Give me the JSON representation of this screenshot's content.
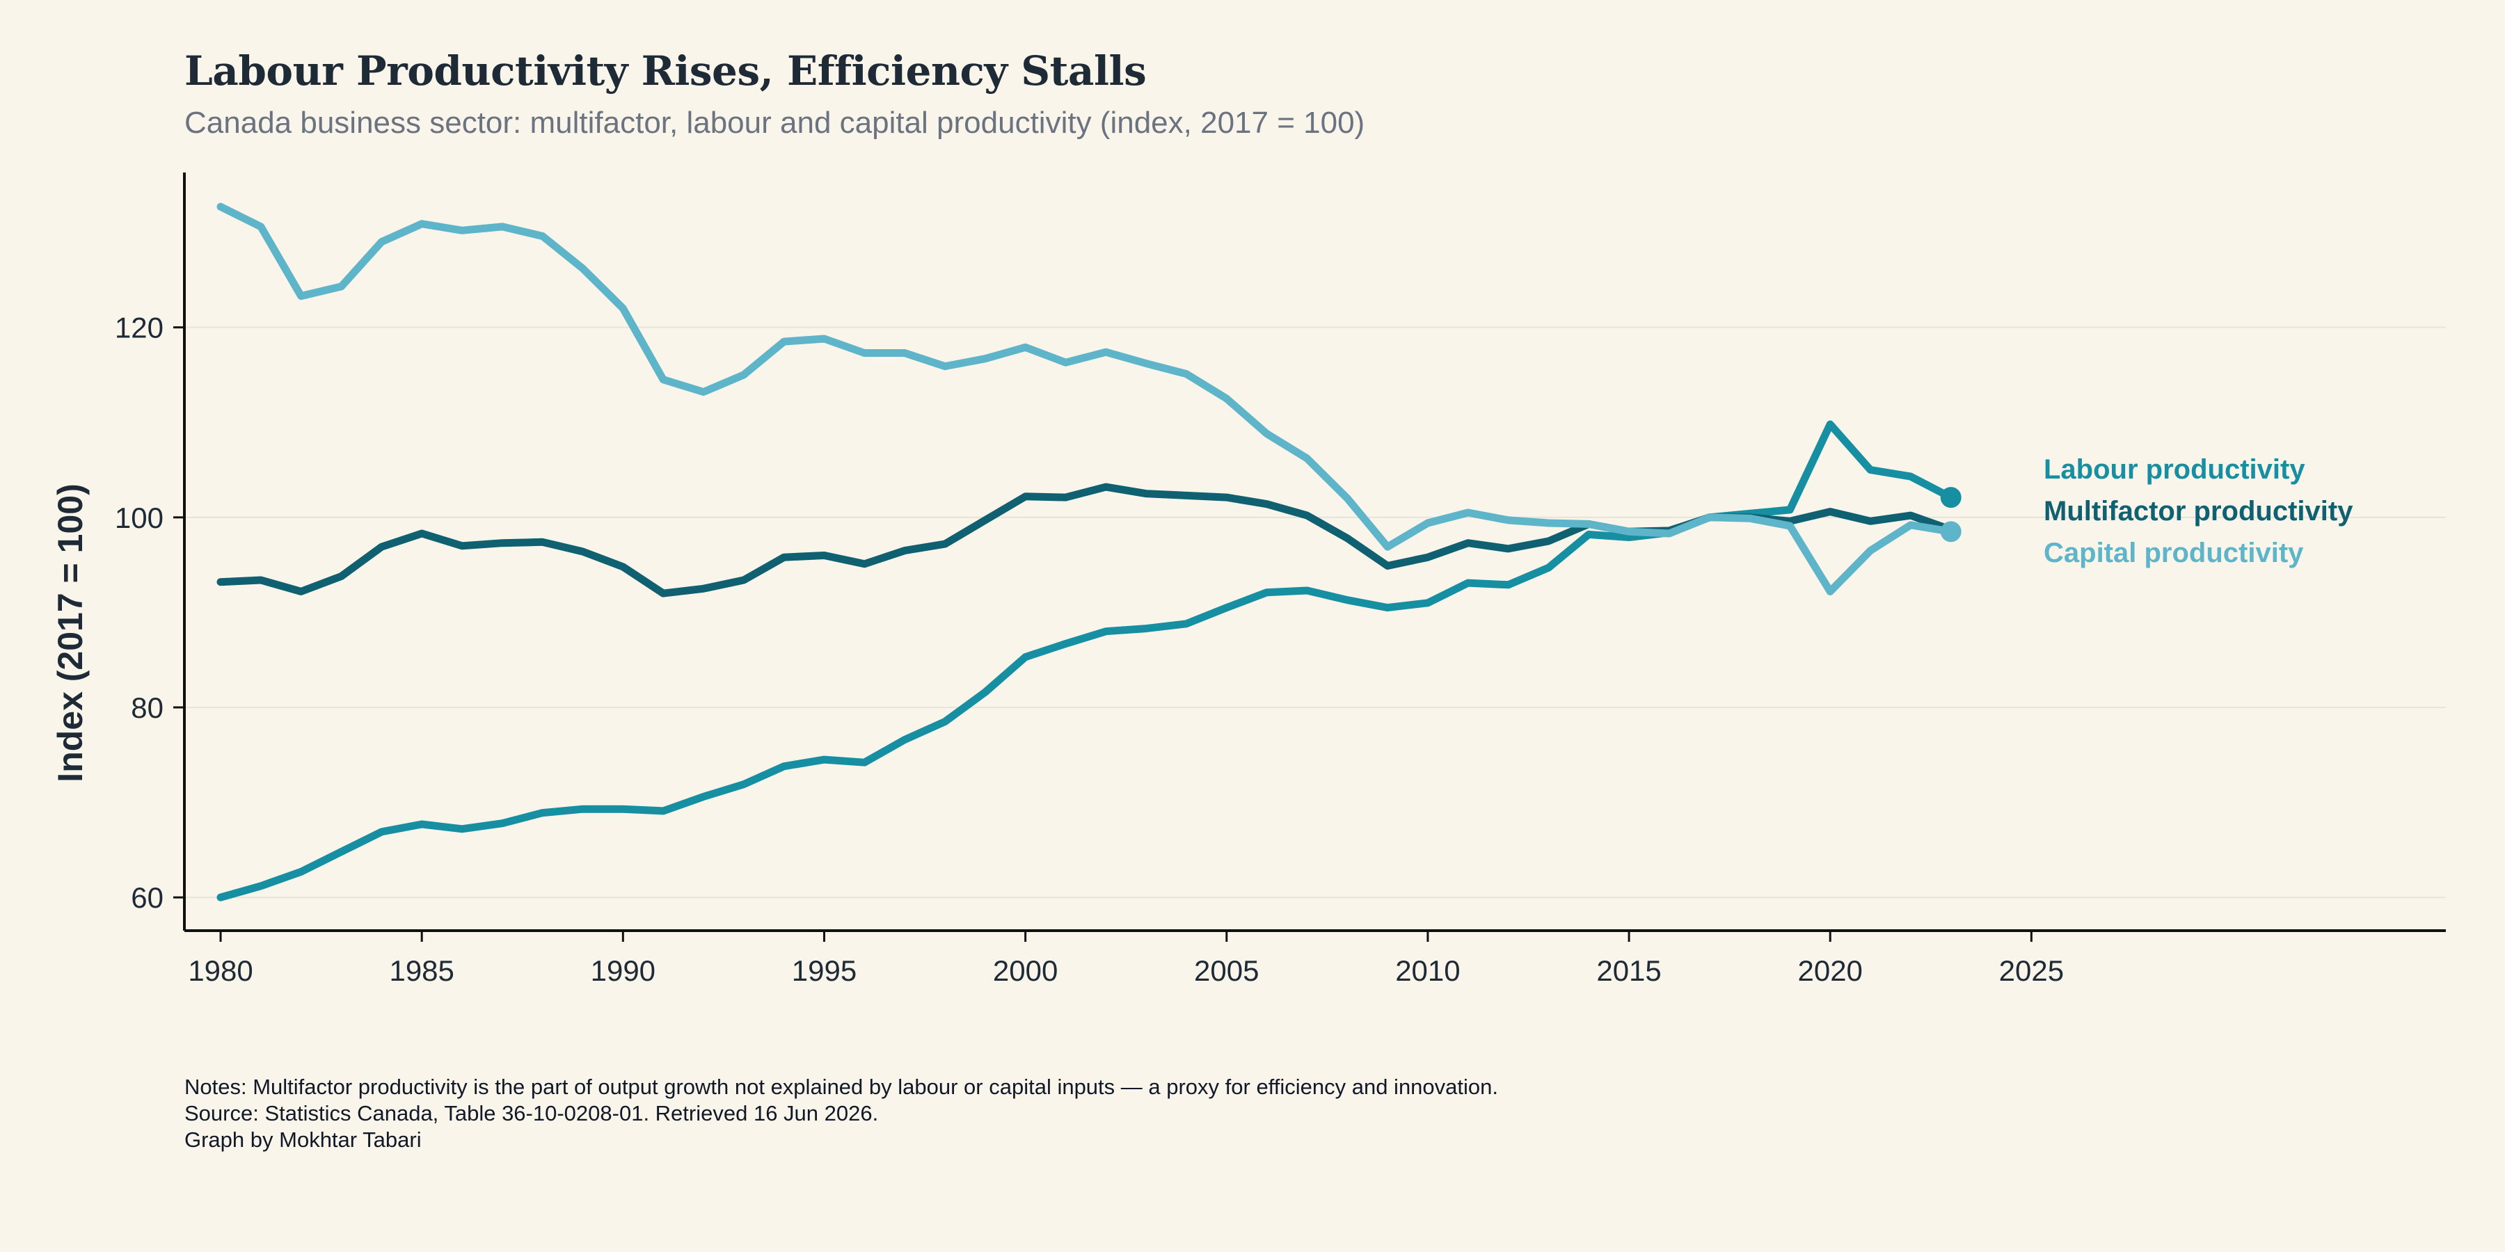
{
  "header": {
    "title": "Labour Productivity Rises, Efficiency Stalls",
    "subtitle": "Canada business sector: multifactor, labour and capital productivity (index, 2017 = 100)"
  },
  "footer": {
    "notes": "Notes: Multifactor productivity is the part of output growth not explained by labour or capital inputs — a proxy for efficiency and innovation.",
    "source": "Source: Statistics Canada, Table 36-10-0208-01. Retrieved 16 Jun 2026.",
    "credit": "Graph by Mokhtar Tabari"
  },
  "colors": {
    "labour": "#168fa3",
    "multifactor": "#0f6070",
    "capital": "#5eb4c8",
    "background": "#f9f5eb",
    "axis": "#111111",
    "grid": "#e8e4da"
  },
  "chart_data": {
    "type": "line",
    "title": "Labour Productivity Rises, Efficiency Stalls",
    "subtitle": "Canada business sector: multifactor, labour and capital productivity (index, 2017 = 100)",
    "xlabel": "",
    "ylabel": "Index (2017 = 100)",
    "xlim": [
      1979.1,
      2035.3
    ],
    "ylim": [
      56.5,
      136.3
    ],
    "x_ticks": [
      1980,
      1985,
      1990,
      1995,
      2000,
      2005,
      2010,
      2015,
      2020,
      2025
    ],
    "y_ticks": [
      60,
      80,
      100,
      120
    ],
    "grid": "horizontal",
    "legend": "direct labels at right end of lines",
    "x": [
      1980,
      1981,
      1982,
      1983,
      1984,
      1985,
      1986,
      1987,
      1988,
      1989,
      1990,
      1991,
      1992,
      1993,
      1994,
      1995,
      1996,
      1997,
      1998,
      1999,
      2000,
      2001,
      2002,
      2003,
      2004,
      2005,
      2006,
      2007,
      2008,
      2009,
      2010,
      2011,
      2012,
      2013,
      2014,
      2015,
      2016,
      2017,
      2018,
      2019,
      2020,
      2021,
      2022,
      2023
    ],
    "series": [
      {
        "name": "Labour productivity",
        "color": "#168fa3",
        "values": [
          60.0,
          61.2,
          62.7,
          64.8,
          66.9,
          67.7,
          67.2,
          67.8,
          68.9,
          69.3,
          69.3,
          69.1,
          70.6,
          71.9,
          73.8,
          74.5,
          74.2,
          76.6,
          78.5,
          81.6,
          85.3,
          86.7,
          88.0,
          88.3,
          88.8,
          90.5,
          92.1,
          92.3,
          91.3,
          90.5,
          91.0,
          93.1,
          92.9,
          94.7,
          98.2,
          97.9,
          98.4,
          100.0,
          100.4,
          100.8,
          109.8,
          105.0,
          104.3,
          102.1
        ]
      },
      {
        "name": "Multifactor productivity",
        "color": "#0f6070",
        "values": [
          93.2,
          93.4,
          92.2,
          93.8,
          96.9,
          98.3,
          97.0,
          97.3,
          97.4,
          96.4,
          94.8,
          92.0,
          92.5,
          93.4,
          95.8,
          96.0,
          95.1,
          96.5,
          97.2,
          99.7,
          102.2,
          102.1,
          103.2,
          102.5,
          102.3,
          102.1,
          101.4,
          100.2,
          97.8,
          94.9,
          95.8,
          97.3,
          96.7,
          97.5,
          99.3,
          98.5,
          98.6,
          100.0,
          100.0,
          99.6,
          100.6,
          99.6,
          100.2,
          98.7
        ]
      },
      {
        "name": "Capital productivity",
        "color": "#5eb4c8",
        "values": [
          132.7,
          130.6,
          123.3,
          124.3,
          129.0,
          130.9,
          130.2,
          130.6,
          129.6,
          126.2,
          122.0,
          114.5,
          113.2,
          115.0,
          118.5,
          118.8,
          117.3,
          117.3,
          115.9,
          116.7,
          117.9,
          116.3,
          117.4,
          116.2,
          115.1,
          112.5,
          108.8,
          106.2,
          102.0,
          96.9,
          99.4,
          100.5,
          99.7,
          99.4,
          99.3,
          98.5,
          98.3,
          100.0,
          99.9,
          99.1,
          92.2,
          96.5,
          99.2,
          98.5
        ]
      }
    ]
  }
}
